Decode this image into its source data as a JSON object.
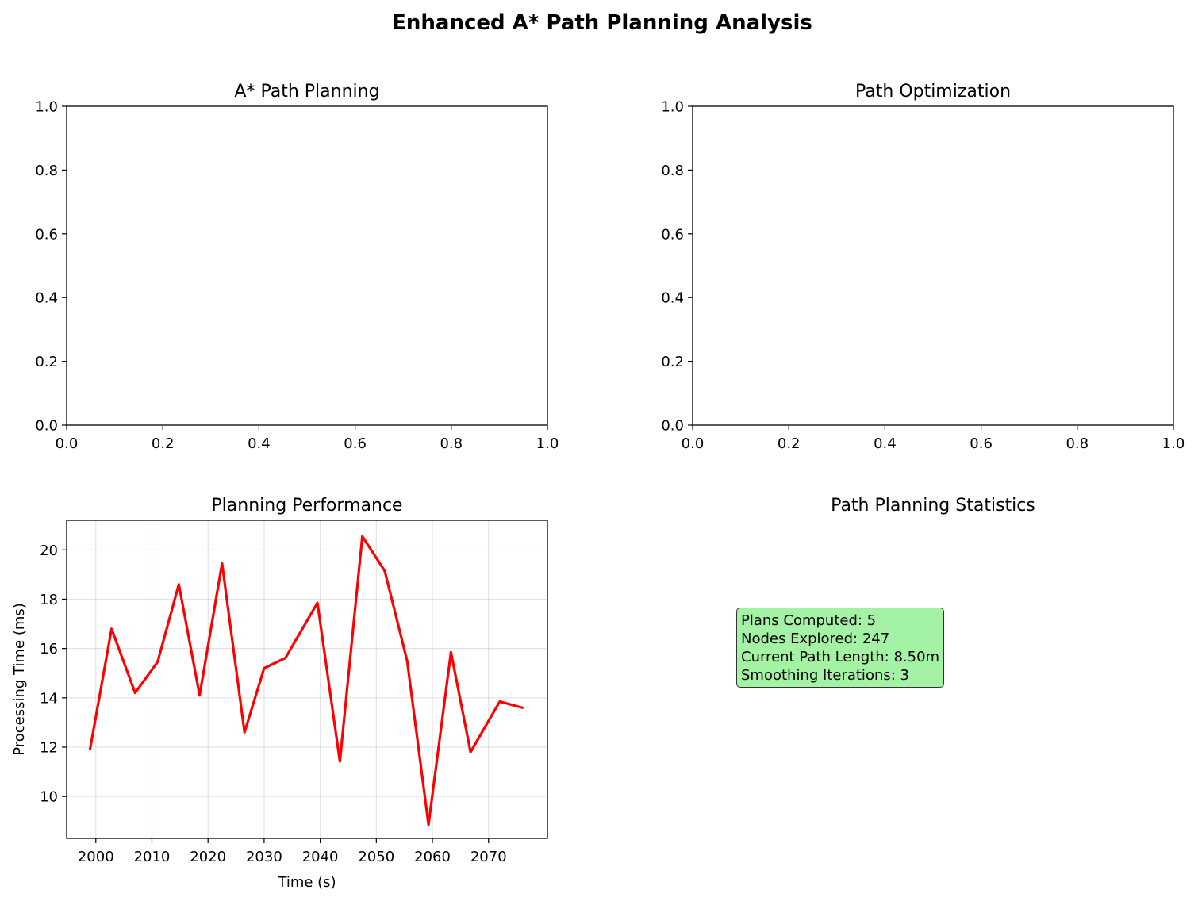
{
  "figure": {
    "title": "Enhanced A* Path Planning Analysis"
  },
  "chart_data": [
    {
      "type": "line",
      "title": "A* Path Planning",
      "xlim": [
        0.0,
        1.0
      ],
      "ylim": [
        0.0,
        1.0
      ],
      "xticks": [
        "0.0",
        "0.2",
        "0.4",
        "0.6",
        "0.8",
        "1.0"
      ],
      "yticks": [
        "0.0",
        "0.2",
        "0.4",
        "0.6",
        "0.8",
        "1.0"
      ],
      "series": [],
      "grid": false
    },
    {
      "type": "line",
      "title": "Path Optimization",
      "xlim": [
        0.0,
        1.0
      ],
      "ylim": [
        0.0,
        1.0
      ],
      "xticks": [
        "0.0",
        "0.2",
        "0.4",
        "0.6",
        "0.8",
        "1.0"
      ],
      "yticks": [
        "0.0",
        "0.2",
        "0.4",
        "0.6",
        "0.8",
        "1.0"
      ],
      "series": [],
      "grid": false
    },
    {
      "type": "line",
      "title": "Planning Performance",
      "xlabel": "Time (s)",
      "ylabel": "Processing Time (ms)",
      "xlim": [
        1994.8,
        2080.5
      ],
      "ylim": [
        8.3,
        21.2
      ],
      "xticks": [
        2000,
        2010,
        2020,
        2030,
        2040,
        2050,
        2060,
        2070
      ],
      "yticks": [
        10,
        12,
        14,
        16,
        18,
        20
      ],
      "grid": true,
      "series": [
        {
          "color": "#ff0000",
          "x": [
            1999.0,
            2002.8,
            2007.0,
            2011.0,
            2014.8,
            2018.5,
            2022.5,
            2026.5,
            2030.0,
            2033.8,
            2039.5,
            2043.5,
            2047.5,
            2051.5,
            2055.5,
            2059.3,
            2063.3,
            2066.8,
            2072.0,
            2076.0
          ],
          "y": [
            11.95,
            16.8,
            14.2,
            15.45,
            18.6,
            14.1,
            19.45,
            12.6,
            15.2,
            15.62,
            17.85,
            11.42,
            20.55,
            19.15,
            15.5,
            8.85,
            15.85,
            11.8,
            13.85,
            13.6
          ]
        }
      ]
    }
  ],
  "stats_panel": {
    "title": "Path Planning Statistics",
    "box_color": "#a4f2a4",
    "lines": [
      "Plans Computed: 5",
      "Nodes Explored: 247",
      "Current Path Length: 8.50m",
      "Smoothing Iterations: 3"
    ]
  }
}
